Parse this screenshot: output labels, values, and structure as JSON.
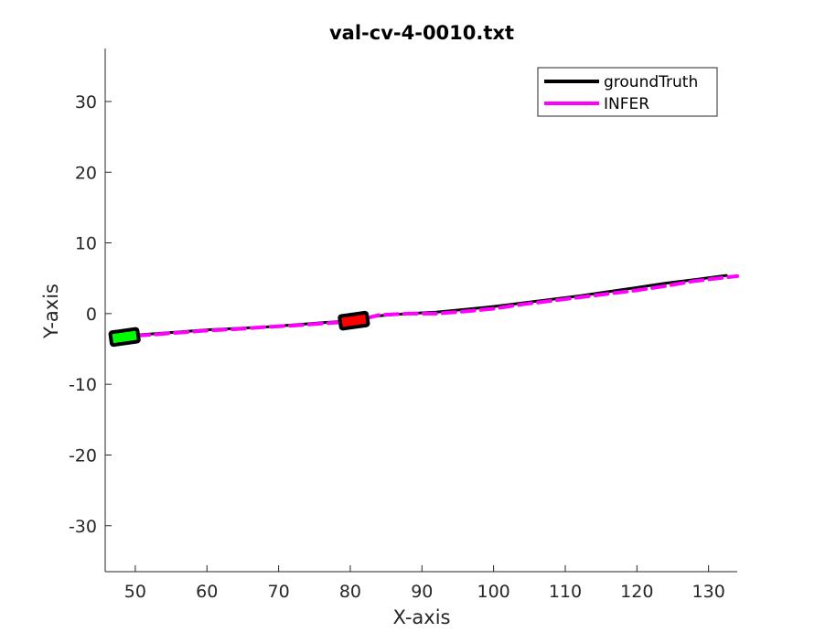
{
  "chart_data": {
    "type": "line",
    "title": "val-cv-4-0010.txt",
    "xlabel": "X-axis",
    "ylabel": "Y-axis",
    "xlim": [
      45.8,
      134
    ],
    "ylim": [
      -36.5,
      37.5
    ],
    "xticks": [
      50,
      60,
      70,
      80,
      90,
      100,
      110,
      120,
      130
    ],
    "yticks": [
      -30,
      -20,
      -10,
      0,
      10,
      20,
      30
    ],
    "grid": false,
    "legend_position": "top-right",
    "series": [
      {
        "name": "groundTruth",
        "color": "#000000",
        "style": "solid",
        "x": [
          47.5,
          52,
          56,
          60,
          64,
          68,
          72,
          76,
          80.5,
          84,
          88,
          92,
          96,
          100,
          104,
          108,
          112,
          116,
          120,
          124,
          128,
          132.5
        ],
        "y": [
          -3.2,
          -2.9,
          -2.6,
          -2.3,
          -2.1,
          -1.9,
          -1.6,
          -1.3,
          -1.0,
          -0.3,
          0.0,
          0.2,
          0.6,
          1.0,
          1.5,
          2.0,
          2.5,
          3.1,
          3.7,
          4.3,
          4.8,
          5.4
        ]
      },
      {
        "name": "INFER",
        "color": "#ff00ff",
        "style": "dashed",
        "x": [
          47.5,
          52,
          56,
          60,
          64,
          68,
          72,
          76,
          80.5,
          84,
          88,
          92,
          96,
          100,
          104,
          108,
          112,
          116,
          120,
          124,
          128,
          134
        ],
        "y": [
          -3.3,
          -3.0,
          -2.7,
          -2.4,
          -2.2,
          -1.9,
          -1.7,
          -1.4,
          -1.1,
          -0.2,
          0.0,
          0.0,
          0.3,
          0.7,
          1.3,
          1.8,
          2.3,
          2.8,
          3.3,
          3.9,
          4.6,
          5.3
        ]
      }
    ],
    "markers": [
      {
        "name": "start-box",
        "x": 48.5,
        "y": -3.3,
        "color": "#00ff00"
      },
      {
        "name": "end-box",
        "x": 80.5,
        "y": -1.0,
        "color": "#ff0000"
      }
    ]
  }
}
